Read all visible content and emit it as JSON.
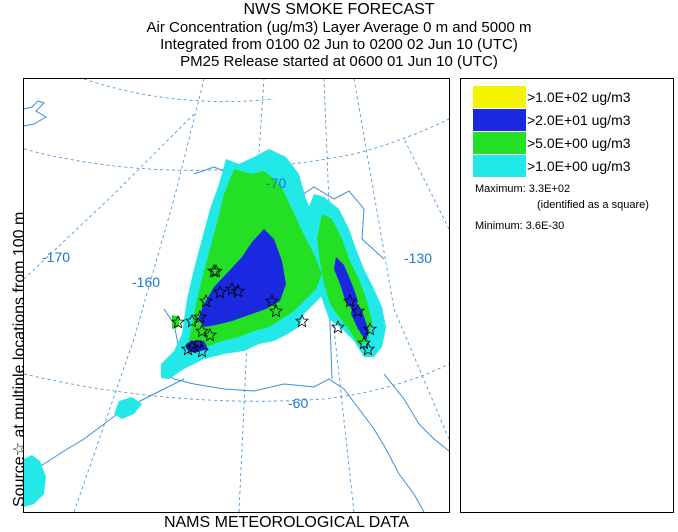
{
  "header": {
    "title": "NWS SMOKE FORECAST",
    "line1": "Air Concentration (ug/m3) Layer Average    0 m and  5000 m",
    "line2": "Integrated from 0100 02 Jun to 0200 02 Jun 10 (UTC)",
    "line3": "PM25 Release started at 0600 01 Jun 10 (UTC)"
  },
  "side_label": "Source☆    at multiple locations    from    100 m",
  "footer": "NAMS METEOROLOGICAL DATA",
  "map": {
    "graticule_labels": [
      "-170",
      "-160",
      "-70",
      "-130",
      "-60"
    ],
    "colors": {
      "graticule": "#3a8fd8",
      "coast": "#3a8fd8",
      "level_1": "#22e8e8",
      "level_5": "#24e024",
      "level_20": "#1a28e0",
      "level_100": "#f4f400"
    }
  },
  "legend": {
    "items": [
      {
        "label": ">1.0E+02 ug/m3",
        "color": "#f4f400"
      },
      {
        "label": ">2.0E+01 ug/m3",
        "color": "#1a28e0"
      },
      {
        "label": ">5.0E+00 ug/m3",
        "color": "#24e024"
      },
      {
        "label": ">1.0E+00 ug/m3",
        "color": "#22e8e8"
      }
    ],
    "maximum_label": "Maximum: 3.3E+02",
    "maximum_note": "(identified as a square)",
    "minimum_label": "Minimum: 3.6E-30"
  }
}
